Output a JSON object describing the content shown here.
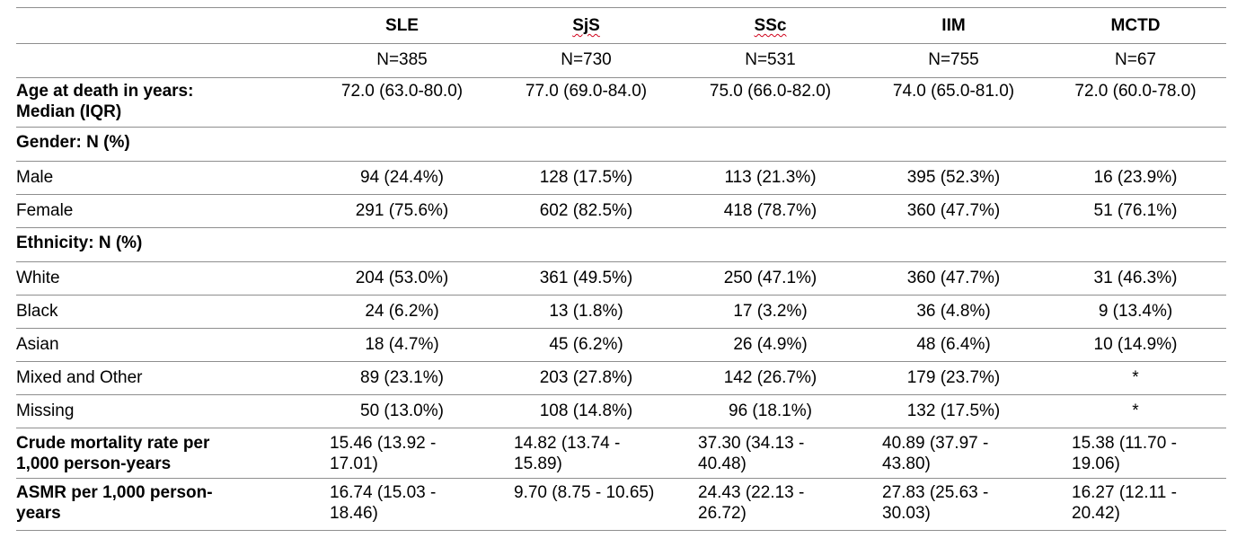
{
  "table": {
    "columns": [
      {
        "key": "sle",
        "label": "SLE",
        "n": "N=385"
      },
      {
        "key": "sjs",
        "label": "SjS",
        "n": "N=730"
      },
      {
        "key": "ssc",
        "label": "SSc",
        "n": "N=531"
      },
      {
        "key": "iim",
        "label": "IIM",
        "n": "N=755"
      },
      {
        "key": "mctd",
        "label": "MCTD",
        "n": "N=67"
      }
    ],
    "age": {
      "label_line1": "Age at death in years:",
      "label_line2": "Median (IQR)",
      "values": [
        "72.0 (63.0-80.0)",
        "77.0 (69.0-84.0)",
        "75.0 (66.0-82.0)",
        "74.0 (65.0-81.0)",
        "72.0 (60.0-78.0)"
      ]
    },
    "gender": {
      "label": "Gender: N (%)",
      "rows": [
        {
          "label": "Male",
          "values": [
            "94 (24.4%)",
            "128 (17.5%)",
            "113 (21.3%)",
            "395 (52.3%)",
            "16 (23.9%)"
          ]
        },
        {
          "label": "Female",
          "values": [
            "291 (75.6%)",
            "602 (82.5%)",
            "418 (78.7%)",
            "360 (47.7%)",
            "51 (76.1%)"
          ]
        }
      ]
    },
    "ethnicity": {
      "label": "Ethnicity: N (%)",
      "rows": [
        {
          "label": "White",
          "values": [
            "204 (53.0%)",
            "361 (49.5%)",
            "250 (47.1%)",
            "360 (47.7%)",
            "31 (46.3%)"
          ]
        },
        {
          "label": "Black",
          "values": [
            "24 (6.2%)",
            "13 (1.8%)",
            "17 (3.2%)",
            "36 (4.8%)",
            "9 (13.4%)"
          ]
        },
        {
          "label": "Asian",
          "values": [
            "18 (4.7%)",
            "45 (6.2%)",
            "26 (4.9%)",
            "48 (6.4%)",
            "10 (14.9%)"
          ]
        },
        {
          "label": "Mixed and Other",
          "values": [
            "89 (23.1%)",
            "203 (27.8%)",
            "142 (26.7%)",
            "179 (23.7%)",
            "*"
          ]
        },
        {
          "label": "Missing",
          "values": [
            "50 (13.0%)",
            "108 (14.8%)",
            "96 (18.1%)",
            "132 (17.5%)",
            "*"
          ]
        }
      ]
    },
    "crude": {
      "label_line1": "Crude mortality rate per",
      "label_line2": "1,000 person-years",
      "values": [
        [
          "15.46 (13.92 -",
          "17.01)"
        ],
        [
          "14.82 (13.74 -",
          "15.89)"
        ],
        [
          "37.30 (34.13 -",
          "40.48)"
        ],
        [
          "40.89 (37.97 -",
          "43.80)"
        ],
        [
          "15.38 (11.70 -",
          "19.06)"
        ]
      ]
    },
    "asmr": {
      "label_line1": "ASMR per 1,000 person-",
      "label_line2": "years",
      "values": [
        [
          "16.74 (15.03 -",
          "18.46)"
        ],
        [
          "9.70 (8.75 - 10.65)",
          ""
        ],
        [
          "24.43 (22.13 -",
          "26.72)"
        ],
        [
          "27.83 (25.63 -",
          "30.03)"
        ],
        [
          "16.27 (12.11 -",
          "20.42)"
        ]
      ]
    }
  }
}
